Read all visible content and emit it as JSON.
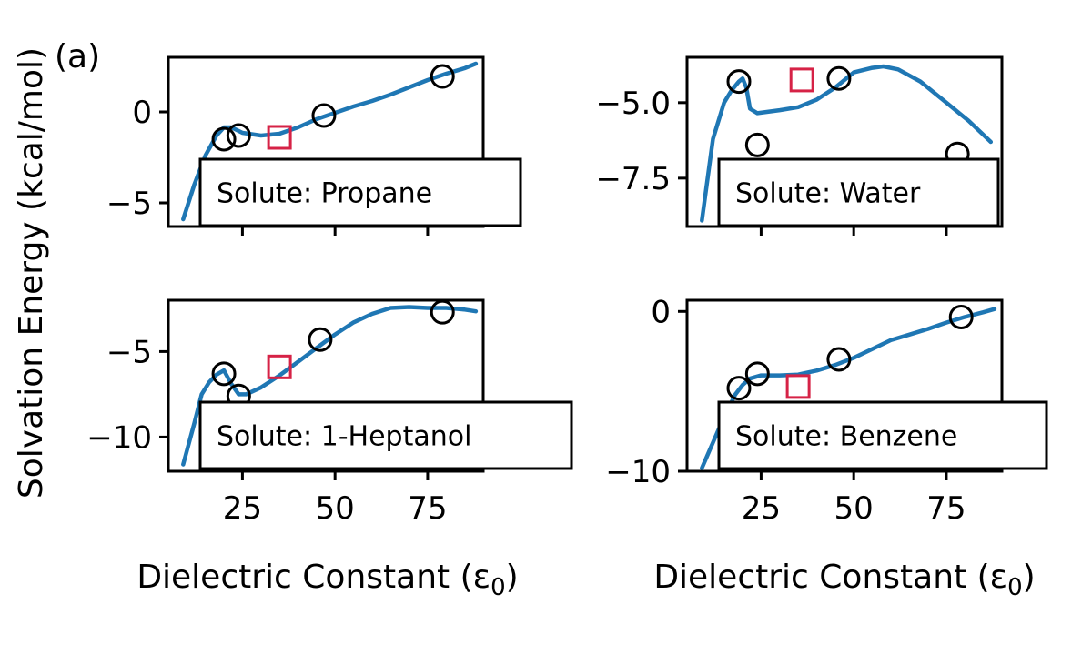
{
  "figure": {
    "panel_label": "(a)",
    "ylabel": "Solvation Energy (kcal/mol)",
    "xlabel": "Dielectric Constant (ε",
    "xlabel_sub": "0",
    "xlabel_end": ")"
  },
  "colors": {
    "curve": "#1f77b4",
    "measured": "#000000",
    "highlight": "#d62246"
  },
  "chart_data": [
    {
      "type": "line",
      "title": "Solute: Propane",
      "xlim": [
        5,
        90
      ],
      "ylim": [
        -6.3,
        3
      ],
      "xticks": [
        25,
        50,
        75
      ],
      "yticks": [
        -5,
        0
      ],
      "ytick_labels": [
        "−5",
        "0"
      ],
      "series": [
        {
          "kind": "curve",
          "x": [
            9,
            12,
            15,
            18,
            20,
            22,
            25,
            30,
            35,
            40,
            45,
            50,
            55,
            60,
            65,
            70,
            75,
            80,
            85,
            88
          ],
          "y": [
            -5.9,
            -4.0,
            -2.4,
            -1.3,
            -0.85,
            -0.85,
            -1.15,
            -1.3,
            -1.2,
            -0.85,
            -0.4,
            -0.05,
            0.3,
            0.6,
            0.95,
            1.35,
            1.75,
            2.1,
            2.4,
            2.65
          ]
        },
        {
          "kind": "circles",
          "x": [
            20,
            24,
            47,
            79
          ],
          "y": [
            -1.5,
            -1.3,
            -0.2,
            1.95
          ]
        },
        {
          "kind": "squares",
          "x": [
            35
          ],
          "y": [
            -1.4
          ]
        }
      ]
    },
    {
      "type": "line",
      "title": "Solute: Water",
      "xlim": [
        5,
        90
      ],
      "ylim": [
        -9.1,
        -3.5
      ],
      "xticks": [
        25,
        50,
        75
      ],
      "yticks": [
        -7.5,
        -5.0
      ],
      "ytick_labels": [
        "−7.5",
        "−5.0"
      ],
      "series": [
        {
          "kind": "curve",
          "x": [
            9,
            12,
            15,
            17,
            19,
            20,
            21,
            22,
            24,
            30,
            35,
            40,
            45,
            50,
            55,
            58,
            62,
            68,
            75,
            81,
            87
          ],
          "y": [
            -8.9,
            -6.2,
            -5.0,
            -4.6,
            -4.3,
            -4.2,
            -4.5,
            -5.2,
            -5.35,
            -5.25,
            -5.15,
            -4.9,
            -4.5,
            -4.0,
            -3.85,
            -3.8,
            -3.9,
            -4.3,
            -5.0,
            -5.6,
            -6.3
          ]
        },
        {
          "kind": "circles",
          "x": [
            19,
            24,
            46,
            78
          ],
          "y": [
            -4.3,
            -6.4,
            -4.2,
            -6.7
          ]
        },
        {
          "kind": "squares",
          "x": [
            36
          ],
          "y": [
            -4.25
          ]
        }
      ]
    },
    {
      "type": "line",
      "title": "Solute: 1-Heptanol",
      "xlim": [
        5,
        90
      ],
      "ylim": [
        -12,
        -2
      ],
      "xticks": [
        25,
        50,
        75
      ],
      "yticks": [
        -10,
        -5
      ],
      "ytick_labels": [
        "−10",
        "−5"
      ],
      "series": [
        {
          "kind": "curve",
          "x": [
            9,
            12,
            14,
            16,
            18,
            20,
            22,
            24,
            26,
            30,
            35,
            40,
            45,
            50,
            55,
            60,
            65,
            70,
            75,
            80,
            85,
            88
          ],
          "y": [
            -11.6,
            -9.2,
            -7.5,
            -6.8,
            -6.35,
            -6.1,
            -6.9,
            -7.5,
            -7.5,
            -7.1,
            -6.4,
            -5.6,
            -4.8,
            -4.0,
            -3.3,
            -2.8,
            -2.45,
            -2.4,
            -2.45,
            -2.45,
            -2.55,
            -2.65
          ]
        },
        {
          "kind": "circles",
          "x": [
            20,
            24,
            46,
            79
          ],
          "y": [
            -6.3,
            -7.6,
            -4.3,
            -2.7
          ]
        },
        {
          "kind": "squares",
          "x": [
            35
          ],
          "y": [
            -5.9
          ]
        }
      ]
    },
    {
      "type": "line",
      "title": "Solute: Benzene",
      "xlim": [
        5,
        90
      ],
      "ylim": [
        -10,
        0.7
      ],
      "xticks": [
        25,
        50,
        75
      ],
      "yticks": [
        -10,
        0
      ],
      "ytick_labels": [
        "−10",
        "0"
      ],
      "series": [
        {
          "kind": "curve",
          "x": [
            9,
            12,
            15,
            18,
            20,
            22,
            25,
            30,
            35,
            40,
            45,
            50,
            55,
            60,
            65,
            70,
            75,
            80,
            85,
            88
          ],
          "y": [
            -9.8,
            -8.2,
            -6.6,
            -5.2,
            -4.6,
            -4.2,
            -4.0,
            -4.0,
            -3.95,
            -3.7,
            -3.35,
            -2.9,
            -2.35,
            -1.8,
            -1.45,
            -1.1,
            -0.7,
            -0.35,
            -0.05,
            0.15
          ]
        },
        {
          "kind": "circles",
          "x": [
            19,
            24,
            46,
            79
          ],
          "y": [
            -4.8,
            -3.9,
            -3.0,
            -0.35
          ]
        },
        {
          "kind": "squares",
          "x": [
            35
          ],
          "y": [
            -4.7
          ]
        }
      ]
    }
  ]
}
